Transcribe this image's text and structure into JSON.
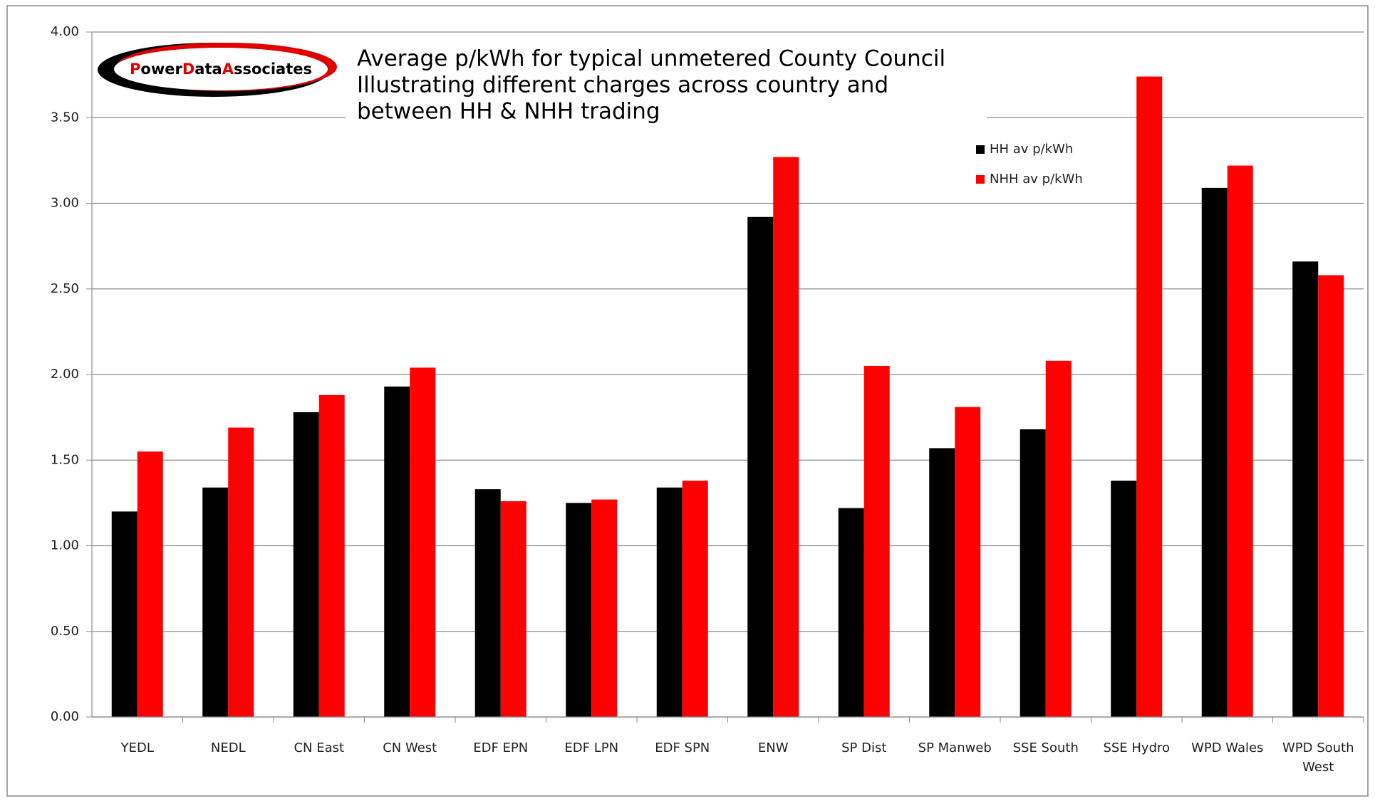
{
  "logo": {
    "parts": [
      "P",
      "ower",
      "D",
      "ata",
      "A",
      "ssociates"
    ]
  },
  "chart_data": {
    "type": "bar",
    "title_lines": [
      "Average p/kWh for typical unmetered County Council",
      "Illustrating different charges across country and",
      "between HH & NHH trading"
    ],
    "categories": [
      "YEDL",
      "NEDL",
      "CN East",
      "CN West",
      "EDF EPN",
      "EDF LPN",
      "EDF SPN",
      "ENW",
      "SP Dist",
      "SP Manweb",
      "SSE South",
      "SSE Hydro",
      "WPD Wales",
      "WPD South West"
    ],
    "series": [
      {
        "name": "HH av p/kWh",
        "color": "#000000",
        "values": [
          1.2,
          1.34,
          1.78,
          1.93,
          1.33,
          1.25,
          1.34,
          2.92,
          1.22,
          1.57,
          1.68,
          1.38,
          3.09,
          2.66
        ]
      },
      {
        "name": "NHH av p/kWh",
        "color": "#ff0000",
        "values": [
          1.55,
          1.69,
          1.88,
          2.04,
          1.26,
          1.27,
          1.38,
          3.27,
          2.05,
          1.81,
          2.08,
          3.74,
          3.22,
          2.58
        ]
      }
    ],
    "ylim": [
      0,
      4
    ],
    "yticks": [
      {
        "value": 0,
        "label": "0.00"
      },
      {
        "value": 0.5,
        "label": "0.50"
      },
      {
        "value": 1,
        "label": "1.00"
      },
      {
        "value": 1.5,
        "label": "1.50"
      },
      {
        "value": 2,
        "label": "2.00"
      },
      {
        "value": 2.5,
        "label": "2.50"
      },
      {
        "value": 3,
        "label": "3.00"
      },
      {
        "value": 3.5,
        "label": "3.50"
      },
      {
        "value": 4,
        "label": "4.00"
      }
    ],
    "grid": true
  }
}
